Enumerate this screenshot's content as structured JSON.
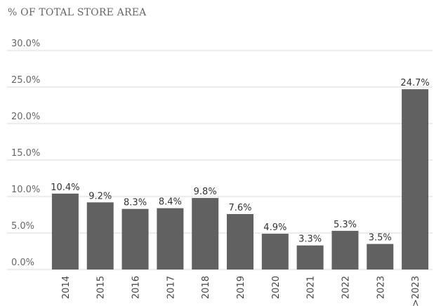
{
  "chart_data": {
    "type": "bar",
    "title": "% OF TOTAL STORE AREA",
    "categories": [
      "2014",
      "2015",
      "2016",
      "2017",
      "2018",
      "2019",
      "2020",
      "2021",
      "2022",
      "2023",
      ">2023"
    ],
    "values": [
      10.4,
      9.2,
      8.3,
      8.4,
      9.8,
      7.6,
      4.9,
      3.3,
      5.3,
      3.5,
      24.7
    ],
    "data_labels": [
      "10.4%",
      "9.2%",
      "8.3%",
      "8.4%",
      "9.8%",
      "7.6%",
      "4.9%",
      "3.3%",
      "5.3%",
      "3.5%",
      "24.7%"
    ],
    "yticks": [
      "0.0%",
      "5.0%",
      "10.0%",
      "15.0%",
      "20.0%",
      "25.0%",
      "30.0%"
    ],
    "ytick_values": [
      0,
      5,
      10,
      15,
      20,
      25,
      30
    ],
    "ylim": [
      0,
      30
    ],
    "grid": true,
    "bar_color": "#616161",
    "grid_color": "#d9d9d9"
  }
}
